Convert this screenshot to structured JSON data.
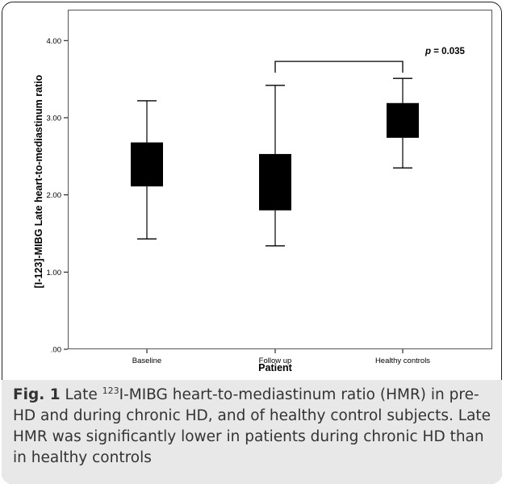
{
  "chart_data": {
    "type": "boxplot",
    "xlabel": "Patient",
    "ylabel": "[I-123]-MIBG Late heart-to-mediastinum ratio",
    "ylim": [
      0,
      4.4
    ],
    "yticks": [
      ".00",
      "1.00",
      "2.00",
      "3.00",
      "4.00"
    ],
    "ytick_values": [
      0,
      1,
      2,
      3,
      4
    ],
    "grid": false,
    "categories": [
      "Baseline",
      "Follow up",
      "Healthy controls"
    ],
    "boxes": [
      {
        "category": "Baseline",
        "whisker_low": 1.43,
        "q1": 2.11,
        "q3": 2.68,
        "whisker_high": 3.22
      },
      {
        "category": "Follow up",
        "whisker_low": 1.34,
        "q1": 1.8,
        "q3": 2.53,
        "whisker_high": 3.42
      },
      {
        "category": "Healthy controls",
        "whisker_low": 2.35,
        "q1": 2.74,
        "q3": 3.19,
        "whisker_high": 3.51
      }
    ],
    "significance": {
      "from": "Follow up",
      "to": "Healthy controls",
      "p_symbol": "p",
      "p_rest": " = 0.035",
      "y": 3.73
    }
  },
  "caption": {
    "fig_label": "Fig. 1",
    "text_before": " Late ",
    "superscript": "123",
    "text_after": "I-MIBG heart-to-mediastinum ratio (HMR) in pre-HD and during chronic HD, and of healthy control subjects. Late HMR was significantly lower in patients during chronic HD than in healthy controls"
  },
  "colors": {
    "box_fill": "#000000",
    "axis": "#000000",
    "caption_band": "#e8e8e8"
  }
}
